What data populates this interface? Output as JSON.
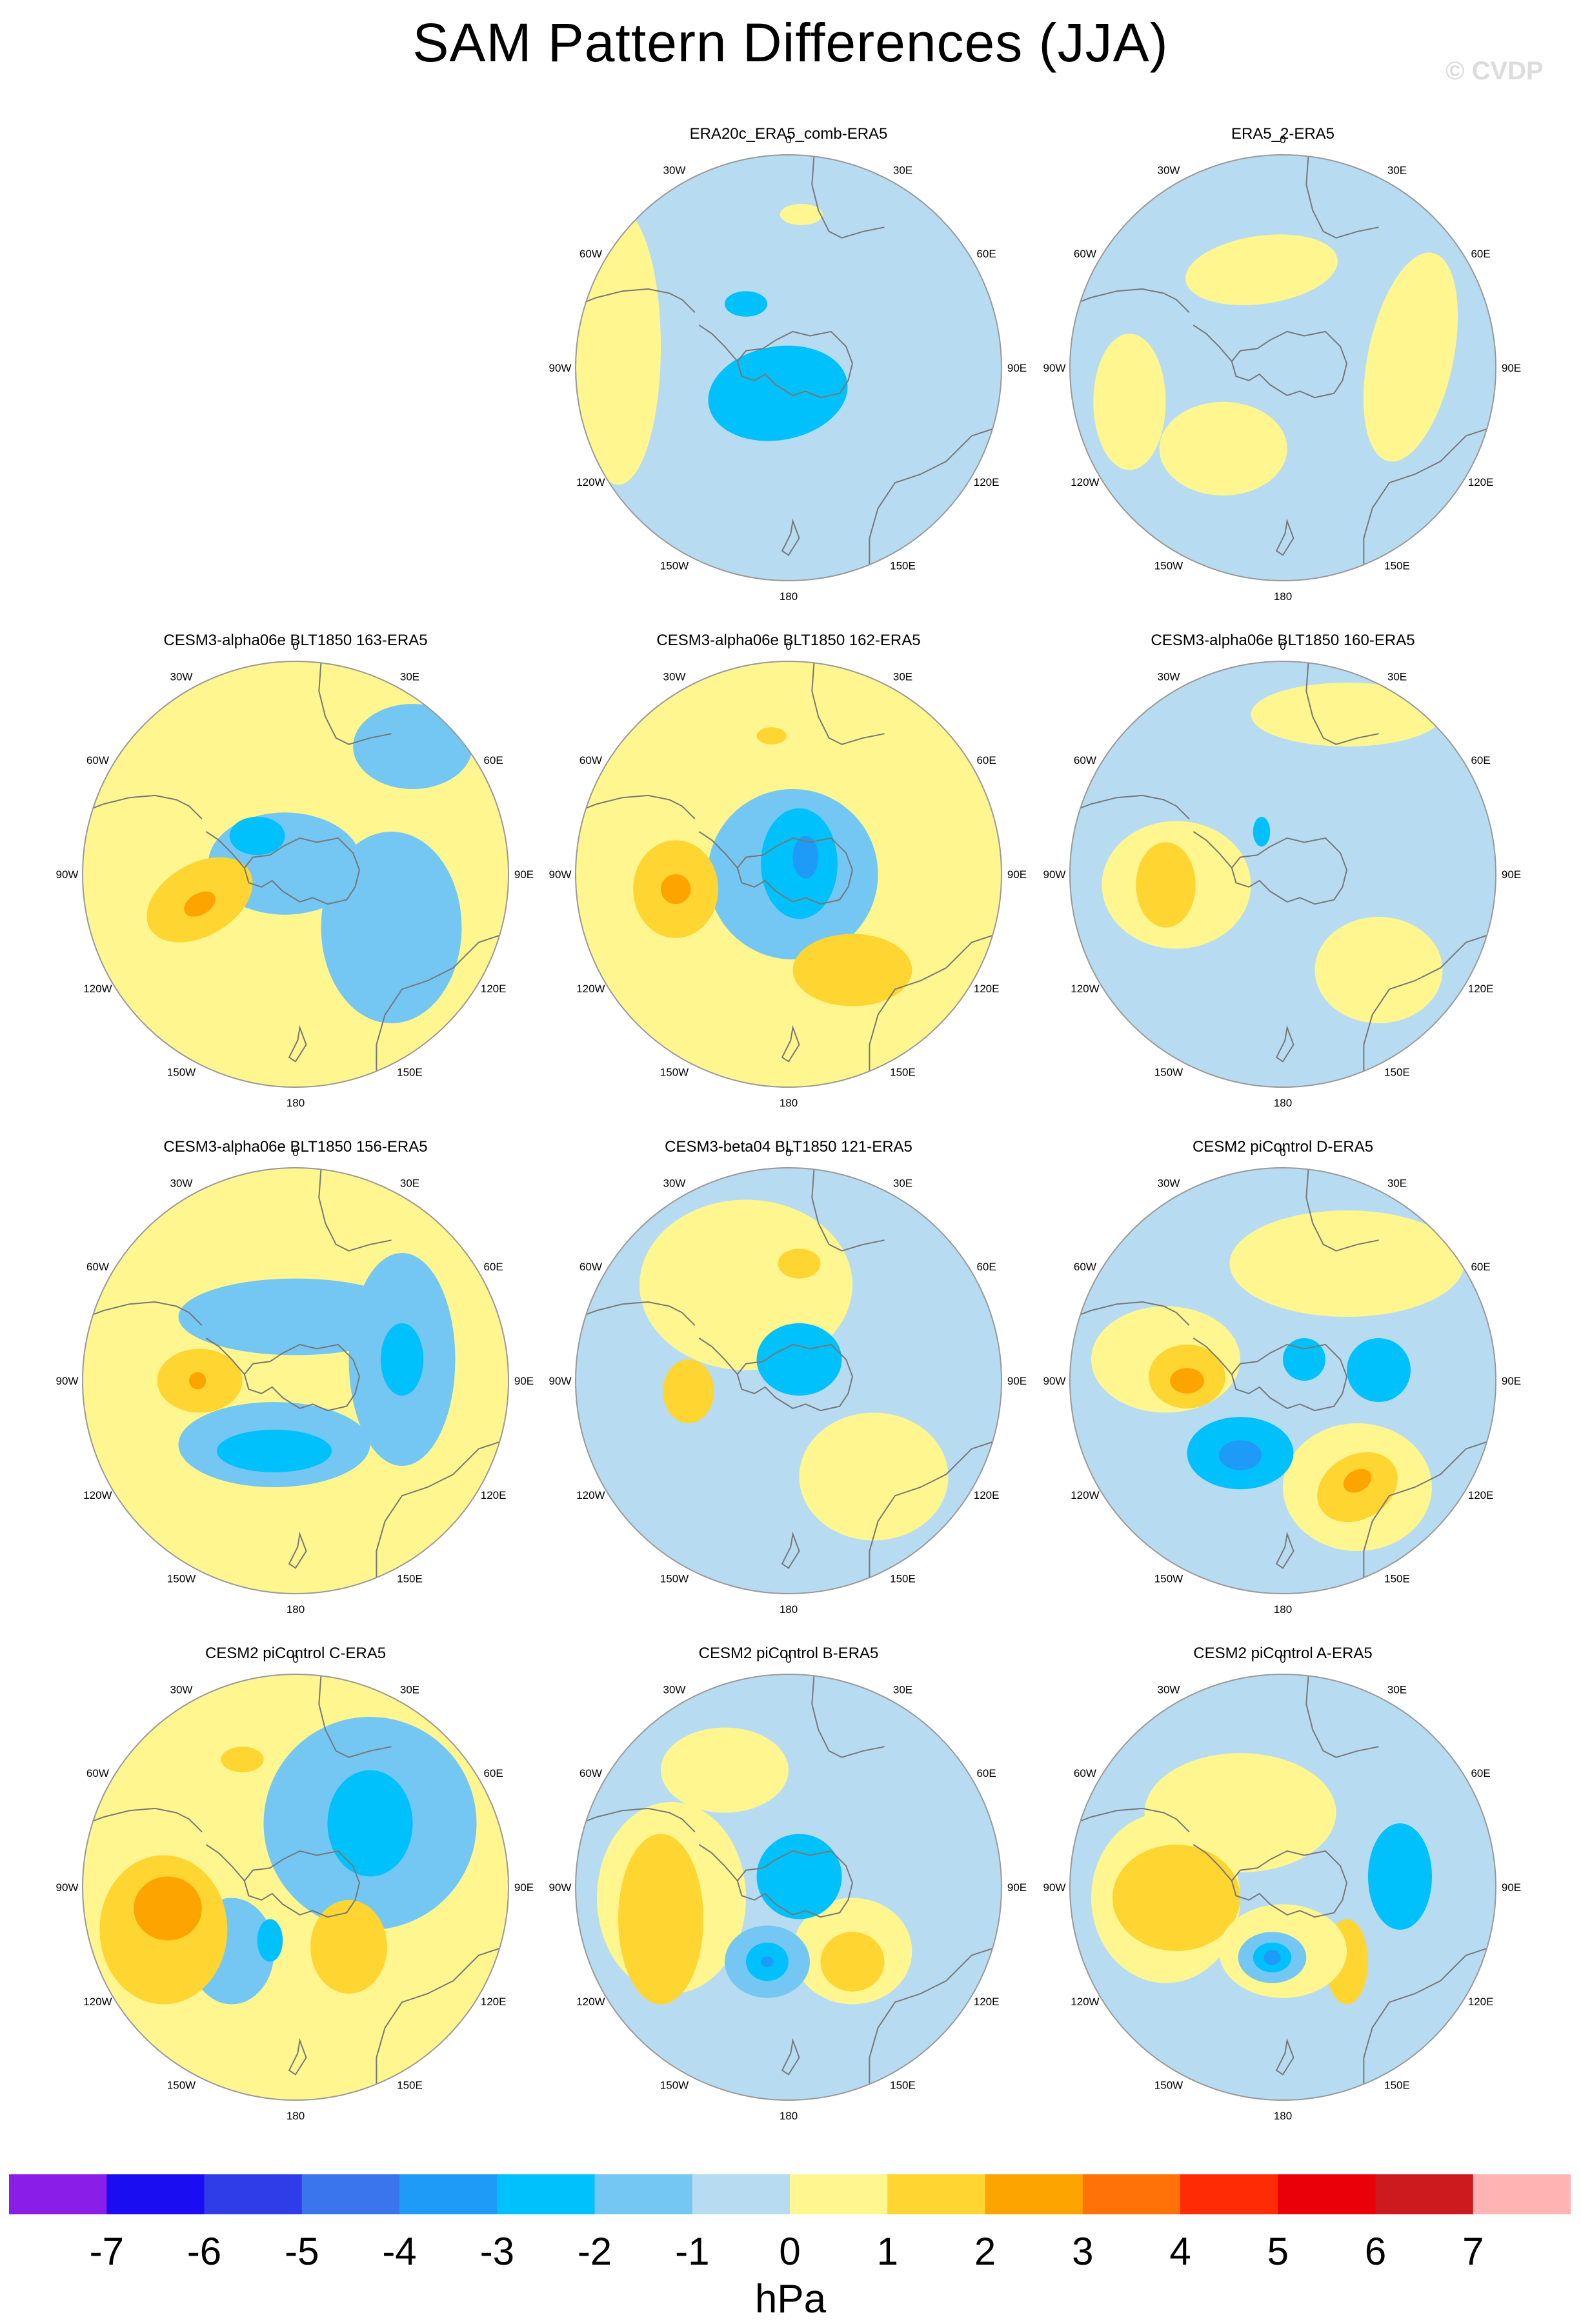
{
  "figure": {
    "title": "SAM Pattern Differences (JJA)",
    "credit": "© CVDP",
    "units": "hPa"
  },
  "chart_data": {
    "type": "heatmap",
    "projection": "south polar stereographic",
    "variable": "sea level pressure difference",
    "meridian_labels": [
      "0",
      "30E",
      "60E",
      "90E",
      "120E",
      "150E",
      "180",
      "150W",
      "120W",
      "90W",
      "60W",
      "30W"
    ],
    "colorbar": {
      "levels": [
        "-7",
        "-6",
        "-5",
        "-4",
        "-3",
        "-2",
        "-1",
        "0",
        "1",
        "2",
        "3",
        "4",
        "5",
        "6",
        "7"
      ],
      "colors": [
        "#8a1ee8",
        "#1a0df2",
        "#2f3de8",
        "#3a75ee",
        "#1e9bf6",
        "#00c1fb",
        "#73c7f2",
        "#b7dcf2",
        "#fff68f",
        "#fed531",
        "#fea400",
        "#ff7207",
        "#ff2b05",
        "#e90009",
        "#cc1a1e",
        "#ffb3b3"
      ]
    },
    "panels": [
      {
        "title": "ERA20c_ERA5_comb-ERA5",
        "background": "#b7dcf2",
        "features": [
          {
            "x": -0.05,
            "y": -0.12,
            "rx": 0.33,
            "ry": 0.22,
            "rot": -10,
            "level": -2
          },
          {
            "x": -0.2,
            "y": 0.3,
            "rx": 0.1,
            "ry": 0.06,
            "rot": 0,
            "level": -2
          },
          {
            "x": -0.8,
            "y": 0.1,
            "rx": 0.2,
            "ry": 0.65,
            "rot": 0,
            "level": 1
          },
          {
            "x": 0.06,
            "y": 0.72,
            "rx": 0.1,
            "ry": 0.05,
            "rot": 0,
            "level": 1
          }
        ]
      },
      {
        "title": "ERA5_2-ERA5",
        "background": "#b7dcf2",
        "features": [
          {
            "x": -0.1,
            "y": 0.46,
            "rx": 0.36,
            "ry": 0.16,
            "rot": -8,
            "level": 1
          },
          {
            "x": 0.6,
            "y": 0.05,
            "rx": 0.2,
            "ry": 0.5,
            "rot": 12,
            "level": 1
          },
          {
            "x": -0.72,
            "y": -0.16,
            "rx": 0.17,
            "ry": 0.32,
            "rot": 0,
            "level": 1
          },
          {
            "x": -0.28,
            "y": -0.38,
            "rx": 0.3,
            "ry": 0.22,
            "rot": 0,
            "level": 1
          }
        ]
      },
      {
        "title": "CESM3-alpha06e BLT1850 163-ERA5",
        "background": "#fff68f",
        "features": [
          {
            "x": -0.05,
            "y": 0.05,
            "rx": 0.36,
            "ry": 0.24,
            "rot": 0,
            "level": -1
          },
          {
            "x": 0.45,
            "y": -0.25,
            "rx": 0.33,
            "ry": 0.45,
            "rot": 0,
            "level": -1
          },
          {
            "x": 0.55,
            "y": 0.6,
            "rx": 0.28,
            "ry": 0.2,
            "rot": 0,
            "level": -1
          },
          {
            "x": -0.18,
            "y": 0.18,
            "rx": 0.13,
            "ry": 0.09,
            "rot": 0,
            "level": -2
          },
          {
            "x": -0.45,
            "y": -0.12,
            "rx": 0.27,
            "ry": 0.17,
            "rot": -30,
            "level": 2
          },
          {
            "x": -0.45,
            "y": -0.14,
            "rx": 0.08,
            "ry": 0.05,
            "rot": -30,
            "level": 3
          }
        ]
      },
      {
        "title": "CESM3-alpha06e BLT1850 162-ERA5",
        "background": "#fff68f",
        "features": [
          {
            "x": 0.02,
            "y": 0.0,
            "rx": 0.4,
            "ry": 0.4,
            "rot": 0,
            "level": -1
          },
          {
            "x": 0.05,
            "y": 0.05,
            "rx": 0.18,
            "ry": 0.26,
            "rot": 0,
            "level": -2
          },
          {
            "x": 0.08,
            "y": 0.08,
            "rx": 0.06,
            "ry": 0.1,
            "rot": 0,
            "level": -3
          },
          {
            "x": -0.53,
            "y": -0.07,
            "rx": 0.2,
            "ry": 0.23,
            "rot": 0,
            "level": 2
          },
          {
            "x": -0.53,
            "y": -0.07,
            "rx": 0.07,
            "ry": 0.07,
            "rot": 0,
            "level": 3
          },
          {
            "x": 0.3,
            "y": -0.45,
            "rx": 0.28,
            "ry": 0.17,
            "rot": 0,
            "level": 2
          },
          {
            "x": -0.08,
            "y": 0.65,
            "rx": 0.07,
            "ry": 0.04,
            "rot": 0,
            "level": 2
          }
        ]
      },
      {
        "title": "CESM3-alpha06e BLT1850 160-ERA5",
        "background": "#b7dcf2",
        "features": [
          {
            "x": -0.5,
            "y": -0.05,
            "rx": 0.35,
            "ry": 0.3,
            "rot": 0,
            "level": 1
          },
          {
            "x": 0.3,
            "y": 0.75,
            "rx": 0.45,
            "ry": 0.15,
            "rot": 0,
            "level": 1
          },
          {
            "x": 0.45,
            "y": -0.45,
            "rx": 0.3,
            "ry": 0.25,
            "rot": 0,
            "level": 1
          },
          {
            "x": -0.55,
            "y": -0.05,
            "rx": 0.14,
            "ry": 0.2,
            "rot": 0,
            "level": 2
          },
          {
            "x": -0.1,
            "y": 0.2,
            "rx": 0.04,
            "ry": 0.07,
            "rot": 0,
            "level": -2
          }
        ]
      },
      {
        "title": "CESM3-alpha06e BLT1850 156-ERA5",
        "background": "#fff68f",
        "features": [
          {
            "x": 0.0,
            "y": 0.3,
            "rx": 0.55,
            "ry": 0.18,
            "rot": 0,
            "level": -1
          },
          {
            "x": 0.5,
            "y": 0.1,
            "rx": 0.25,
            "ry": 0.5,
            "rot": 0,
            "level": -1
          },
          {
            "x": -0.1,
            "y": -0.3,
            "rx": 0.45,
            "ry": 0.2,
            "rot": 0,
            "level": -1
          },
          {
            "x": 0.5,
            "y": 0.1,
            "rx": 0.1,
            "ry": 0.17,
            "rot": 0,
            "level": -2
          },
          {
            "x": -0.1,
            "y": -0.33,
            "rx": 0.27,
            "ry": 0.1,
            "rot": 0,
            "level": -2
          },
          {
            "x": -0.45,
            "y": 0.0,
            "rx": 0.2,
            "ry": 0.15,
            "rot": 0,
            "level": 2
          },
          {
            "x": -0.46,
            "y": 0.0,
            "rx": 0.04,
            "ry": 0.04,
            "rot": 0,
            "level": 3
          }
        ]
      },
      {
        "title": "CESM3-beta04 BLT1850 121-ERA5",
        "background": "#b7dcf2",
        "features": [
          {
            "x": -0.2,
            "y": 0.45,
            "rx": 0.5,
            "ry": 0.4,
            "rot": 0,
            "level": 1
          },
          {
            "x": 0.4,
            "y": -0.45,
            "rx": 0.35,
            "ry": 0.3,
            "rot": 0,
            "level": 1
          },
          {
            "x": 0.05,
            "y": 0.1,
            "rx": 0.2,
            "ry": 0.17,
            "rot": 0,
            "level": -2
          },
          {
            "x": -0.47,
            "y": -0.05,
            "rx": 0.12,
            "ry": 0.15,
            "rot": 0,
            "level": 2
          },
          {
            "x": 0.05,
            "y": 0.55,
            "rx": 0.1,
            "ry": 0.07,
            "rot": 0,
            "level": 2
          }
        ]
      },
      {
        "title": "CESM2 piControl D-ERA5",
        "background": "#b7dcf2",
        "features": [
          {
            "x": 0.3,
            "y": 0.55,
            "rx": 0.55,
            "ry": 0.25,
            "rot": 0,
            "level": 1
          },
          {
            "x": -0.55,
            "y": 0.1,
            "rx": 0.35,
            "ry": 0.25,
            "rot": 0,
            "level": 1
          },
          {
            "x": 0.35,
            "y": -0.5,
            "rx": 0.35,
            "ry": 0.3,
            "rot": 0,
            "level": 1
          },
          {
            "x": -0.45,
            "y": 0.02,
            "rx": 0.18,
            "ry": 0.15,
            "rot": 0,
            "level": 2
          },
          {
            "x": -0.45,
            "y": 0.0,
            "rx": 0.08,
            "ry": 0.06,
            "rot": 0,
            "level": 3
          },
          {
            "x": 0.35,
            "y": -0.5,
            "rx": 0.2,
            "ry": 0.15,
            "rot": -30,
            "level": 2
          },
          {
            "x": 0.35,
            "y": -0.47,
            "rx": 0.07,
            "ry": 0.05,
            "rot": -30,
            "level": 3
          },
          {
            "x": -0.2,
            "y": -0.34,
            "rx": 0.25,
            "ry": 0.17,
            "rot": 0,
            "level": -2
          },
          {
            "x": -0.2,
            "y": -0.35,
            "rx": 0.1,
            "ry": 0.07,
            "rot": 0,
            "level": -3
          },
          {
            "x": 0.45,
            "y": 0.05,
            "rx": 0.15,
            "ry": 0.15,
            "rot": 0,
            "level": -2
          },
          {
            "x": 0.1,
            "y": 0.1,
            "rx": 0.1,
            "ry": 0.1,
            "rot": 0,
            "level": -2
          }
        ]
      },
      {
        "title": "CESM2 piControl C-ERA5",
        "background": "#fff68f",
        "features": [
          {
            "x": 0.35,
            "y": 0.3,
            "rx": 0.5,
            "ry": 0.5,
            "rot": 0,
            "level": -1
          },
          {
            "x": -0.3,
            "y": -0.3,
            "rx": 0.2,
            "ry": 0.25,
            "rot": 0,
            "level": -1
          },
          {
            "x": 0.35,
            "y": 0.3,
            "rx": 0.2,
            "ry": 0.25,
            "rot": 0,
            "level": -2
          },
          {
            "x": -0.62,
            "y": -0.2,
            "rx": 0.3,
            "ry": 0.35,
            "rot": 0,
            "level": 2
          },
          {
            "x": -0.6,
            "y": -0.1,
            "rx": 0.16,
            "ry": 0.15,
            "rot": 0,
            "level": 3
          },
          {
            "x": 0.25,
            "y": -0.28,
            "rx": 0.18,
            "ry": 0.22,
            "rot": 0,
            "level": 2
          },
          {
            "x": -0.25,
            "y": 0.6,
            "rx": 0.1,
            "ry": 0.06,
            "rot": 0,
            "level": 2
          },
          {
            "x": -0.12,
            "y": -0.25,
            "rx": 0.06,
            "ry": 0.1,
            "rot": 0,
            "level": -2
          }
        ]
      },
      {
        "title": "CESM2 piControl B-ERA5",
        "background": "#b7dcf2",
        "features": [
          {
            "x": -0.55,
            "y": -0.05,
            "rx": 0.35,
            "ry": 0.45,
            "rot": 0,
            "level": 1
          },
          {
            "x": -0.6,
            "y": -0.15,
            "rx": 0.2,
            "ry": 0.4,
            "rot": 0,
            "level": 2
          },
          {
            "x": 0.3,
            "y": -0.3,
            "rx": 0.28,
            "ry": 0.25,
            "rot": 0,
            "level": 1
          },
          {
            "x": 0.3,
            "y": -0.35,
            "rx": 0.15,
            "ry": 0.14,
            "rot": 0,
            "level": 2
          },
          {
            "x": -0.3,
            "y": 0.55,
            "rx": 0.3,
            "ry": 0.2,
            "rot": 0,
            "level": 1
          },
          {
            "x": 0.05,
            "y": 0.05,
            "rx": 0.2,
            "ry": 0.2,
            "rot": 0,
            "level": -2
          },
          {
            "x": -0.1,
            "y": -0.35,
            "rx": 0.2,
            "ry": 0.17,
            "rot": 0,
            "level": -1
          },
          {
            "x": -0.1,
            "y": -0.35,
            "rx": 0.1,
            "ry": 0.09,
            "rot": 0,
            "level": -2
          },
          {
            "x": -0.1,
            "y": -0.35,
            "rx": 0.03,
            "ry": 0.025,
            "rot": 0,
            "level": -3
          }
        ]
      },
      {
        "title": "CESM2 piControl A-ERA5",
        "background": "#b7dcf2",
        "features": [
          {
            "x": -0.2,
            "y": 0.35,
            "rx": 0.45,
            "ry": 0.28,
            "rot": 0,
            "level": 1
          },
          {
            "x": -0.55,
            "y": -0.05,
            "rx": 0.35,
            "ry": 0.4,
            "rot": 0,
            "level": 1
          },
          {
            "x": -0.5,
            "y": -0.05,
            "rx": 0.3,
            "ry": 0.25,
            "rot": 0,
            "level": 2
          },
          {
            "x": 0.3,
            "y": -0.35,
            "rx": 0.1,
            "ry": 0.2,
            "rot": 0,
            "level": 2
          },
          {
            "x": 0.0,
            "y": -0.3,
            "rx": 0.3,
            "ry": 0.22,
            "rot": 0,
            "level": 1
          },
          {
            "x": -0.05,
            "y": -0.33,
            "rx": 0.16,
            "ry": 0.12,
            "rot": 0,
            "level": -1
          },
          {
            "x": -0.05,
            "y": -0.33,
            "rx": 0.09,
            "ry": 0.07,
            "rot": 0,
            "level": -2
          },
          {
            "x": -0.05,
            "y": -0.33,
            "rx": 0.04,
            "ry": 0.035,
            "rot": 0,
            "level": -3
          },
          {
            "x": 0.55,
            "y": 0.05,
            "rx": 0.15,
            "ry": 0.25,
            "rot": 0,
            "level": -2
          }
        ]
      }
    ]
  }
}
